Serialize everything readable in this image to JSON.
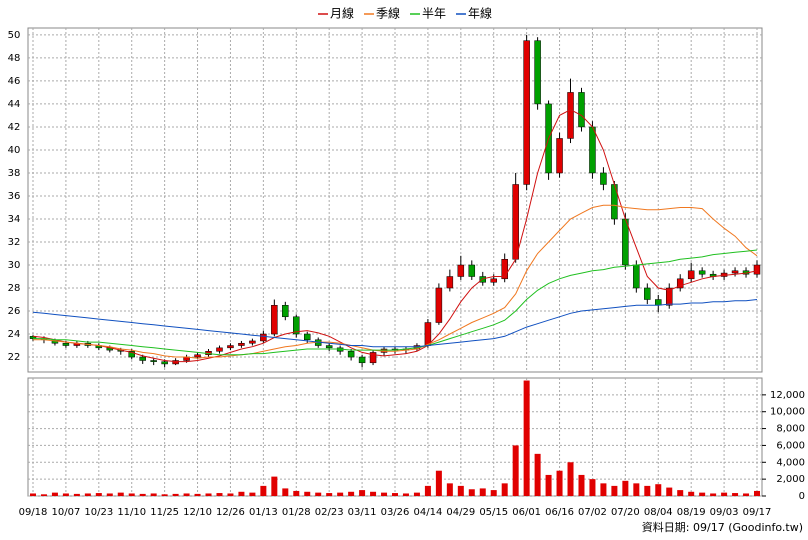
{
  "chart_data": {
    "type": "candlestick",
    "legend": "top",
    "grid": true,
    "categories": [
      "09/18",
      null,
      null,
      "10/07",
      null,
      null,
      "10/23",
      null,
      null,
      "11/10",
      null,
      null,
      "11/25",
      null,
      null,
      "12/10",
      null,
      null,
      "12/26",
      null,
      null,
      "01/13",
      null,
      null,
      "01/28",
      null,
      null,
      "02/23",
      null,
      null,
      "03/11",
      null,
      null,
      "03/26",
      null,
      null,
      "04/14",
      null,
      null,
      "04/29",
      null,
      null,
      "05/15",
      null,
      null,
      "06/01",
      null,
      null,
      "06/16",
      null,
      null,
      "07/02",
      null,
      null,
      "07/20",
      null,
      null,
      "08/04",
      null,
      null,
      "08/19",
      null,
      null,
      "09/03",
      null,
      null,
      "09/17"
    ],
    "up_color": "#e00000",
    "down_color": "#00a000",
    "open": [
      23.8,
      23.6,
      23.5,
      23.2,
      23.0,
      23.2,
      23.0,
      22.8,
      22.6,
      22.5,
      22.0,
      21.7,
      21.6,
      21.4,
      21.7,
      22.0,
      22.2,
      22.5,
      22.8,
      23.0,
      23.2,
      23.4,
      24.0,
      26.5,
      25.5,
      24.0,
      23.5,
      23.0,
      22.8,
      22.5,
      22.0,
      21.5,
      22.4,
      22.7,
      22.6,
      22.7,
      23.0,
      25.0,
      28.0,
      29.0,
      30.0,
      29.0,
      28.5,
      28.8,
      30.5,
      37,
      49.5,
      44,
      38,
      41,
      45,
      42,
      38,
      37,
      34,
      30,
      28,
      27,
      26.5,
      28,
      28.8,
      29.5,
      29.2,
      29.0,
      29.3,
      29.5,
      29.2
    ],
    "high": [
      23.9,
      23.8,
      23.6,
      23.4,
      23.4,
      23.4,
      23.2,
      23.0,
      22.8,
      22.7,
      22.2,
      21.9,
      21.8,
      21.9,
      22.2,
      22.4,
      22.7,
      23.0,
      23.2,
      23.4,
      23.6,
      24.3,
      27.0,
      26.8,
      25.7,
      24.2,
      23.7,
      23.2,
      23.0,
      22.7,
      22.2,
      22.6,
      22.9,
      22.9,
      22.9,
      23.2,
      25.3,
      28.4,
      29.6,
      30.8,
      30.4,
      29.4,
      29.2,
      31.0,
      38,
      50,
      49.8,
      44.3,
      41.5,
      46.2,
      45.4,
      42.5,
      38.5,
      37.3,
      34.5,
      30.4,
      28.4,
      27.4,
      28.4,
      29.2,
      30.2,
      29.8,
      29.5,
      29.6,
      29.8,
      29.8,
      30.4
    ],
    "low": [
      23.4,
      23.2,
      23.0,
      22.8,
      22.8,
      22.8,
      22.6,
      22.4,
      22.2,
      21.8,
      21.4,
      21.3,
      21.1,
      21.3,
      21.5,
      21.8,
      22.0,
      22.3,
      22.6,
      22.8,
      23.0,
      23.2,
      23.8,
      25.2,
      23.7,
      23.2,
      22.8,
      22.5,
      22.2,
      21.7,
      21.1,
      21.3,
      22.1,
      22.3,
      22.3,
      22.5,
      22.8,
      24.8,
      27.7,
      28.7,
      28.7,
      28.2,
      28.2,
      28.5,
      30.2,
      36.5,
      43.5,
      37.4,
      37.6,
      40.6,
      41.6,
      37.5,
      36.5,
      33.5,
      29.6,
      27.6,
      26.6,
      25.9,
      26.2,
      27.7,
      28.5,
      28.9,
      28.7,
      28.7,
      29.0,
      28.9,
      28.9
    ],
    "close": [
      23.6,
      23.5,
      23.2,
      23.0,
      23.2,
      23.0,
      22.8,
      22.6,
      22.5,
      22.0,
      21.7,
      21.6,
      21.4,
      21.7,
      22.0,
      22.2,
      22.5,
      22.8,
      23.0,
      23.2,
      23.4,
      24.0,
      26.5,
      25.5,
      24.0,
      23.5,
      23.0,
      22.8,
      22.5,
      22.0,
      21.5,
      22.4,
      22.7,
      22.6,
      22.7,
      23.0,
      25.0,
      28.0,
      29.0,
      30.0,
      29.0,
      28.5,
      28.8,
      30.5,
      37,
      49.5,
      44,
      38,
      41,
      45,
      42,
      38,
      37,
      34,
      30,
      28,
      27,
      26.5,
      28,
      28.8,
      29.5,
      29.2,
      29.0,
      29.3,
      29.5,
      29.2,
      30.0
    ],
    "ylim": [
      20.7,
      50.6
    ],
    "yticks": [
      22,
      24,
      26,
      28,
      30,
      32,
      34,
      36,
      38,
      40,
      42,
      44,
      46,
      48,
      50
    ],
    "series": [
      {
        "name": "月線",
        "color": "#d01010",
        "values": [
          23.8,
          23.7,
          23.5,
          23.3,
          23.2,
          23.1,
          23.0,
          22.8,
          22.6,
          22.4,
          22.1,
          21.9,
          21.7,
          21.6,
          21.6,
          21.7,
          21.9,
          22.1,
          22.4,
          22.7,
          22.9,
          23.2,
          23.7,
          24.0,
          24.2,
          24.3,
          24.1,
          23.8,
          23.3,
          22.8,
          22.4,
          22.2,
          22.1,
          22.2,
          22.3,
          22.5,
          23.0,
          24.0,
          25.3,
          26.8,
          28.0,
          28.8,
          29.0,
          29.0,
          30.5,
          34,
          38,
          41,
          43,
          43.5,
          43,
          42,
          40,
          37,
          34,
          31.5,
          29,
          28,
          27.8,
          28.2,
          28.5,
          28.8,
          29.0,
          29.1,
          29.2,
          29.3,
          29.5
        ]
      },
      {
        "name": "季線",
        "color": "#f07820",
        "values": [
          23.5,
          23.5,
          23.4,
          23.3,
          23.2,
          23.1,
          23.0,
          22.9,
          22.7,
          22.6,
          22.4,
          22.3,
          22.1,
          22.0,
          22.0,
          21.9,
          22.0,
          22.0,
          22.1,
          22.2,
          22.3,
          22.5,
          22.7,
          22.9,
          23.0,
          23.2,
          23.3,
          23.3,
          23.2,
          23.0,
          22.8,
          22.6,
          22.5,
          22.5,
          22.6,
          22.7,
          23.1,
          23.5,
          24.0,
          24.5,
          25.0,
          25.4,
          25.8,
          26.3,
          27.5,
          29.5,
          31,
          32,
          33,
          34,
          34.5,
          35,
          35.2,
          35.2,
          35,
          34.9,
          34.8,
          34.8,
          34.9,
          35.0,
          35.0,
          34.9,
          34.0,
          33.2,
          32.5,
          31.5,
          30.8
        ]
      },
      {
        "name": "半年",
        "color": "#20c020",
        "values": [
          23.6,
          23.6,
          23.5,
          23.5,
          23.4,
          23.3,
          23.3,
          23.2,
          23.1,
          23.0,
          22.9,
          22.8,
          22.7,
          22.6,
          22.5,
          22.4,
          22.3,
          22.2,
          22.2,
          22.2,
          22.3,
          22.3,
          22.4,
          22.5,
          22.6,
          22.7,
          22.7,
          22.7,
          22.7,
          22.6,
          22.6,
          22.6,
          22.6,
          22.6,
          22.7,
          22.8,
          23.0,
          23.3,
          23.6,
          23.9,
          24.2,
          24.5,
          24.8,
          25.2,
          26,
          27,
          27.8,
          28.4,
          28.8,
          29.1,
          29.3,
          29.5,
          29.6,
          29.8,
          29.9,
          30.0,
          30.1,
          30.2,
          30.3,
          30.5,
          30.6,
          30.7,
          30.9,
          31.0,
          31.1,
          31.2,
          31.3
        ]
      },
      {
        "name": "年線",
        "color": "#1050c0",
        "values": [
          25.9,
          25.8,
          25.7,
          25.6,
          25.5,
          25.4,
          25.3,
          25.2,
          25.1,
          25.0,
          24.9,
          24.8,
          24.7,
          24.6,
          24.5,
          24.4,
          24.3,
          24.2,
          24.1,
          24.0,
          23.9,
          23.8,
          23.7,
          23.6,
          23.5,
          23.4,
          23.3,
          23.2,
          23.1,
          23.0,
          23.0,
          22.9,
          22.9,
          22.9,
          22.9,
          22.9,
          23.0,
          23.1,
          23.2,
          23.3,
          23.4,
          23.5,
          23.6,
          23.8,
          24.2,
          24.6,
          24.9,
          25.2,
          25.5,
          25.8,
          26.0,
          26.1,
          26.2,
          26.3,
          26.4,
          26.5,
          26.5,
          26.5,
          26.6,
          26.6,
          26.7,
          26.7,
          26.8,
          26.8,
          26.9,
          26.9,
          27.0
        ]
      }
    ],
    "volume": {
      "color": "#e00000",
      "values": [
        300,
        200,
        400,
        300,
        250,
        300,
        350,
        300,
        400,
        300,
        250,
        300,
        200,
        250,
        300,
        250,
        300,
        350,
        300,
        500,
        400,
        1200,
        2300,
        900,
        600,
        500,
        400,
        350,
        400,
        500,
        700,
        500,
        400,
        350,
        300,
        400,
        1200,
        3000,
        1500,
        1200,
        800,
        900,
        700,
        1500,
        6000,
        13700,
        5000,
        2500,
        3000,
        4000,
        2500,
        2000,
        1500,
        1200,
        1800,
        1500,
        1200,
        1400,
        1000,
        700,
        500,
        400,
        300,
        400,
        350,
        300,
        600
      ],
      "ylim": [
        0,
        14000
      ],
      "yticks": [
        0,
        {
          "value": 2000,
          "label": "2,000"
        },
        {
          "value": 4000,
          "label": "4,000"
        },
        {
          "value": 6000,
          "label": "6,000"
        },
        {
          "value": 8000,
          "label": "8,000"
        },
        {
          "value": 10000,
          "label": "10,000"
        },
        {
          "value": 12000,
          "label": "12,000"
        }
      ]
    },
    "footer": "資料日期: 09/17  (Goodinfo.tw)"
  }
}
